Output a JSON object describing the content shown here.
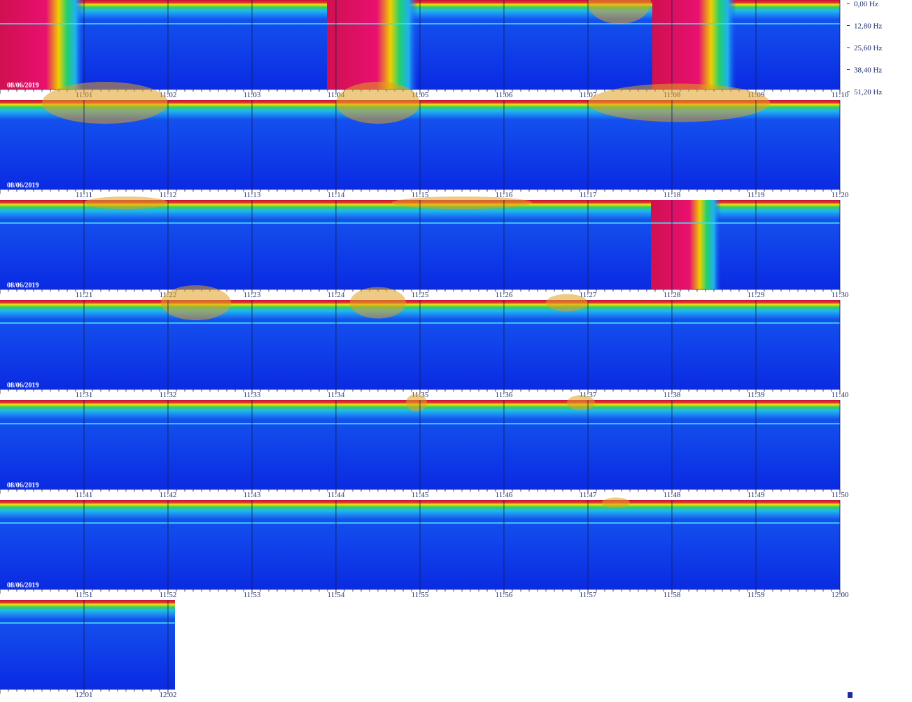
{
  "frequency_axis": [
    "0,00 Hz",
    "12,80 Hz",
    "25,60 Hz",
    "38,40 Hz",
    "51,20 Hz"
  ],
  "rows": [
    {
      "date": "08/06/2019",
      "times": [
        "11:01",
        "11:02",
        "11:03",
        "11:04",
        "11:05",
        "11:06",
        "11:07",
        "11:08",
        "11:09",
        "11:10"
      ]
    },
    {
      "date": "08/06/2019",
      "times": [
        "11:11",
        "11:12",
        "11:13",
        "11:14",
        "11:15",
        "11:16",
        "11:17",
        "11:18",
        "11:19",
        "11:20"
      ]
    },
    {
      "date": "08/06/2019",
      "times": [
        "11:21",
        "11:22",
        "11:23",
        "11:24",
        "11:25",
        "11:26",
        "11:27",
        "11:28",
        "11:29",
        "11:30"
      ]
    },
    {
      "date": "08/06/2019",
      "times": [
        "11:31",
        "11:32",
        "11:33",
        "11:34",
        "11:35",
        "11:36",
        "11:37",
        "11:38",
        "11:39",
        "11:40"
      ]
    },
    {
      "date": "08/06/2019",
      "times": [
        "11:41",
        "11:42",
        "11:43",
        "11:44",
        "11:45",
        "11:46",
        "11:47",
        "11:48",
        "11:49",
        "11:50"
      ]
    },
    {
      "date": "08/06/2019",
      "times": [
        "11:51",
        "11:52",
        "11:53",
        "11:54",
        "11:55",
        "11:56",
        "11:57",
        "11:58",
        "11:59",
        "12:00"
      ]
    },
    {
      "times": [
        "12:01",
        "12:02"
      ]
    }
  ]
}
